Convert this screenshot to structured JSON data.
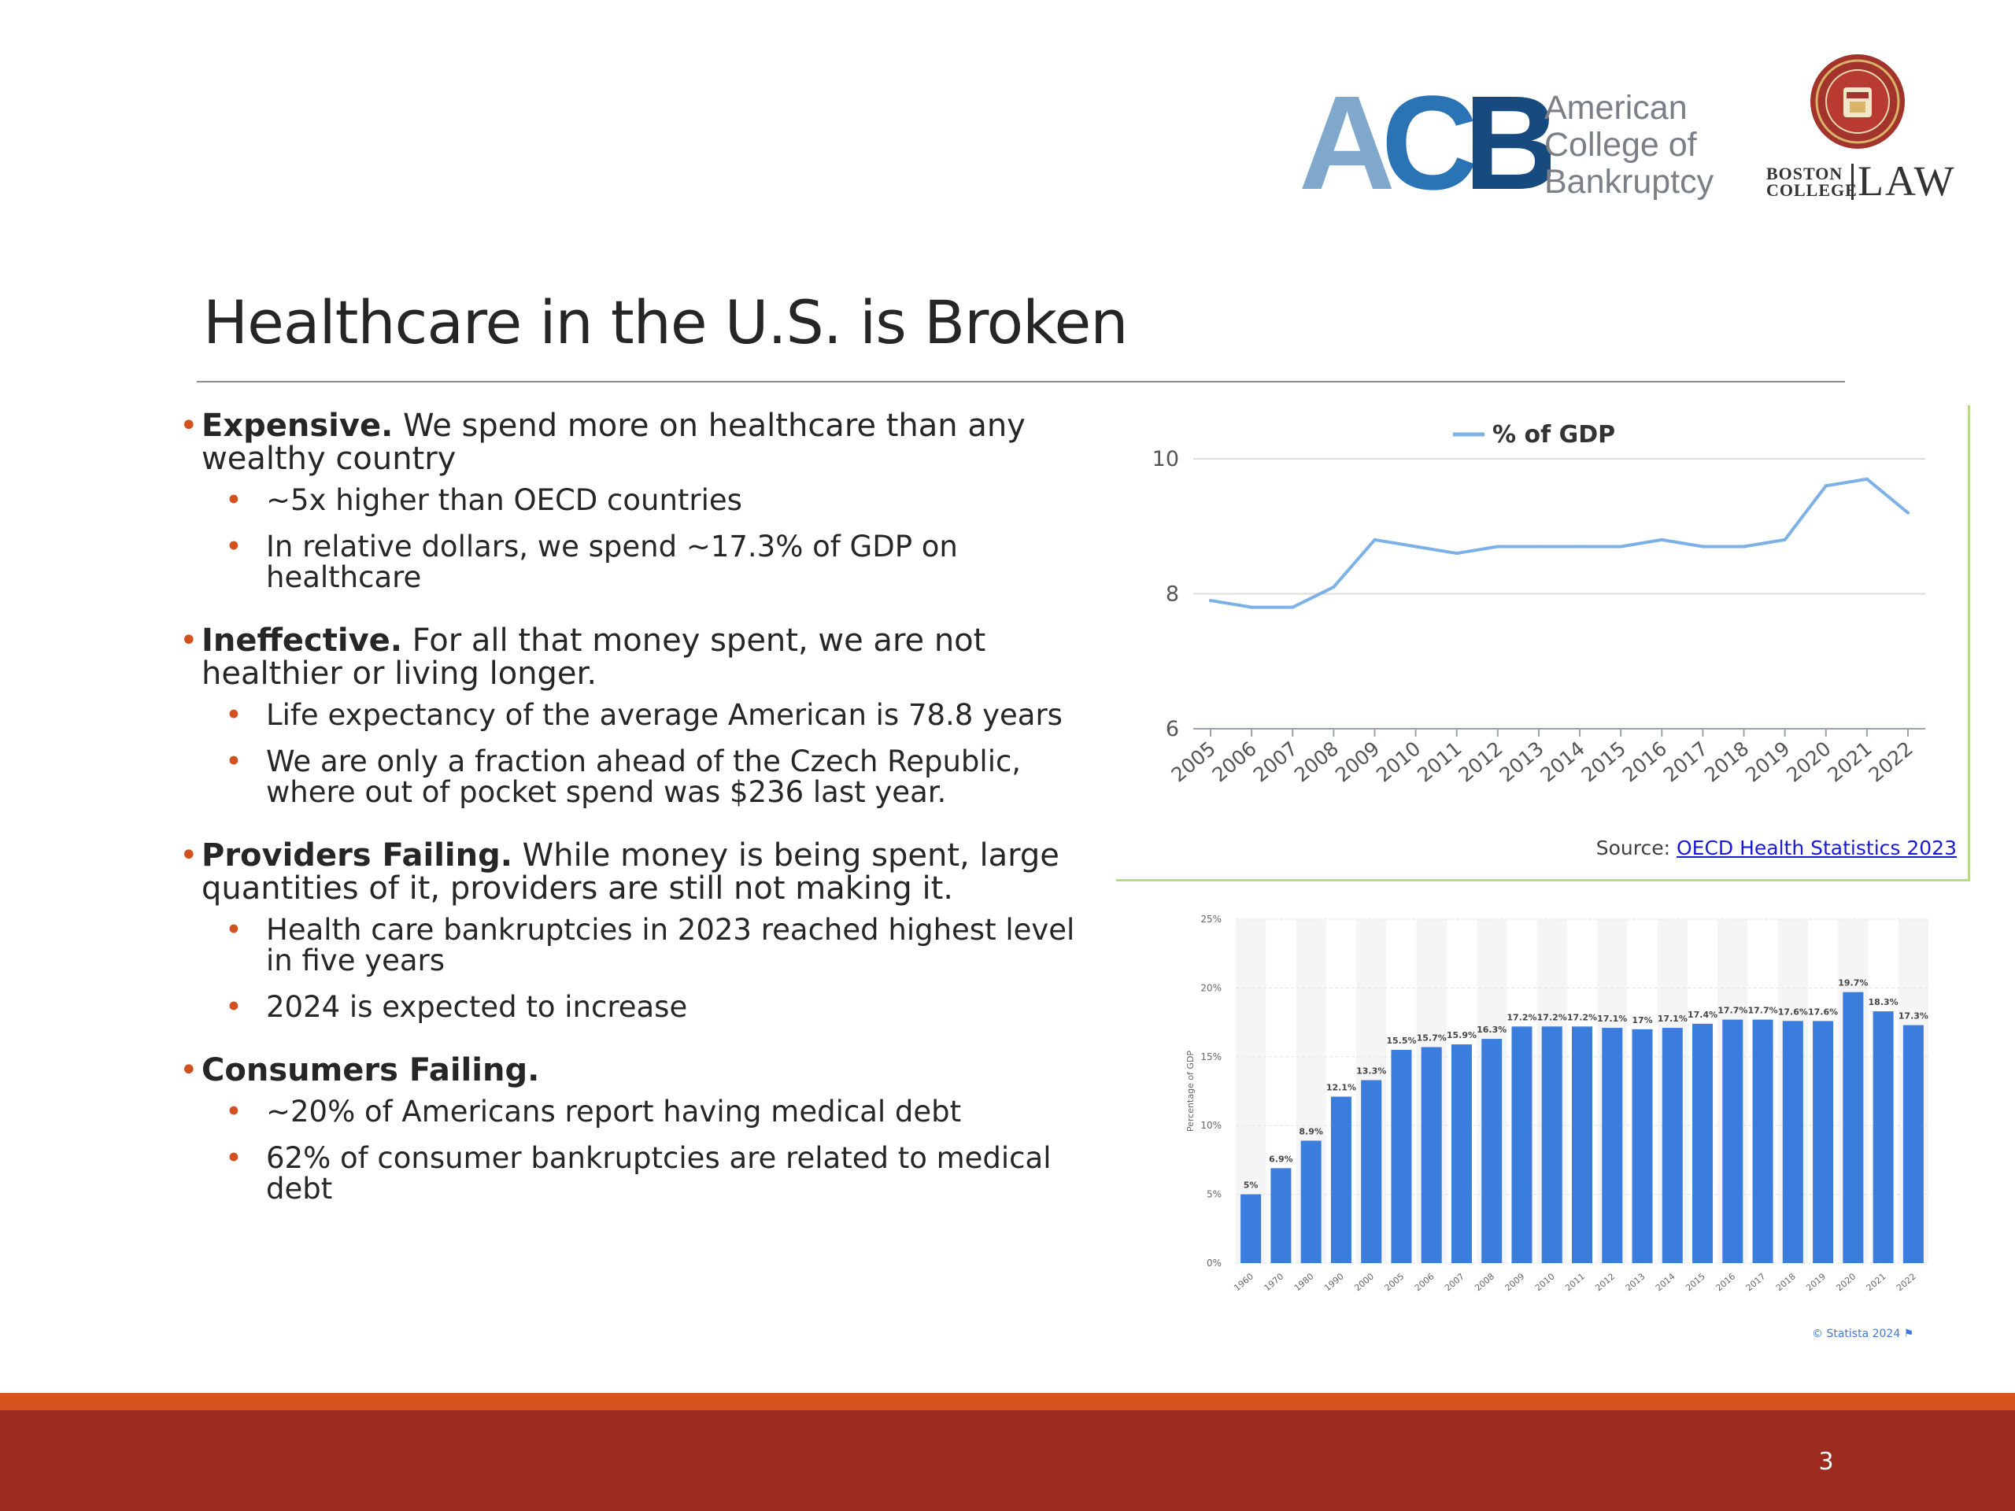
{
  "logos": {
    "acb": {
      "mark": "ACB",
      "line1": "American",
      "line2": "College of",
      "line3": "Bankruptcy"
    },
    "bc": {
      "boston": "BOSTON",
      "college": "COLLEGE",
      "law": "LAW"
    }
  },
  "title": "Healthcare in the U.S. is Broken",
  "sections": [
    {
      "lead": "Expensive.",
      "text": " We spend more on healthcare than any wealthy country",
      "subs": [
        "~5x higher than OECD countries",
        "In relative dollars, we spend ~17.3% of GDP on healthcare"
      ]
    },
    {
      "lead": "Ineffective.",
      "text": " For all that money spent, we are not healthier or living longer.",
      "subs": [
        "Life expectancy of the average American is 78.8 years",
        "We are only a fraction ahead of the Czech Republic, where out of pocket spend was $236 last year."
      ]
    },
    {
      "lead": "Providers Failing.",
      "text": " While money is being spent, large quantities of it, providers are still not making it.",
      "subs": [
        "Health care bankruptcies in 2023 reached highest level in five years",
        "2024 is expected to increase"
      ]
    },
    {
      "lead": "Consumers Failing.",
      "text": "",
      "subs": [
        "~20% of Americans report having medical debt",
        "62% of consumer bankruptcies are related to medical debt"
      ]
    }
  ],
  "source": {
    "label": "Source: ",
    "link": "OECD Health Statistics 2023"
  },
  "statista_credit": "© Statista 2024 ⚑",
  "page_number": "3",
  "chart_data": [
    {
      "type": "line",
      "title": "",
      "legend": "% of GDP",
      "legend_position": "top",
      "color": "#7cb1e8",
      "x": [
        "2005",
        "2006",
        "2007",
        "2008",
        "2009",
        "2010",
        "2011",
        "2012",
        "2013",
        "2014",
        "2015",
        "2016",
        "2017",
        "2018",
        "2019",
        "2020",
        "2021",
        "2022"
      ],
      "series": [
        {
          "name": "% of GDP",
          "values": [
            7.9,
            7.8,
            7.8,
            8.1,
            8.8,
            8.7,
            8.6,
            8.7,
            8.7,
            8.7,
            8.7,
            8.8,
            8.7,
            8.7,
            8.8,
            9.6,
            9.7,
            9.2
          ]
        }
      ],
      "ylim": [
        6,
        10
      ],
      "yticks": [
        "6",
        "8",
        "10"
      ],
      "grid": true
    },
    {
      "type": "bar",
      "title": "",
      "ylabel": "Percentage of GDP",
      "color": "#3b7ddd",
      "categories": [
        "1960",
        "1970",
        "1980",
        "1990",
        "2000",
        "2005",
        "2006",
        "2007",
        "2008",
        "2009",
        "2010",
        "2011",
        "2012",
        "2013",
        "2014",
        "2015",
        "2016",
        "2017",
        "2018",
        "2019",
        "2020",
        "2021",
        "2022"
      ],
      "values": [
        5,
        6.9,
        8.9,
        12.1,
        13.3,
        15.5,
        15.7,
        15.9,
        16.3,
        17.2,
        17.2,
        17.2,
        17.1,
        17,
        17.1,
        17.4,
        17.7,
        17.7,
        17.6,
        17.6,
        19.7,
        18.3,
        17.3
      ],
      "labels": [
        "5%",
        "6.9%",
        "8.9%",
        "12.1%",
        "13.3%",
        "15.5%",
        "15.7%",
        "15.9%",
        "16.3%",
        "17.2%",
        "17.2%",
        "17.2%",
        "17.1%",
        "17%",
        "17.1%",
        "17.4%",
        "17.7%",
        "17.7%",
        "17.6%",
        "17.6%",
        "19.7%",
        "18.3%",
        "17.3%"
      ],
      "ylim": [
        0,
        25
      ],
      "yticks": [
        "0%",
        "5%",
        "10%",
        "15%",
        "20%",
        "25%"
      ],
      "grid": true
    }
  ]
}
